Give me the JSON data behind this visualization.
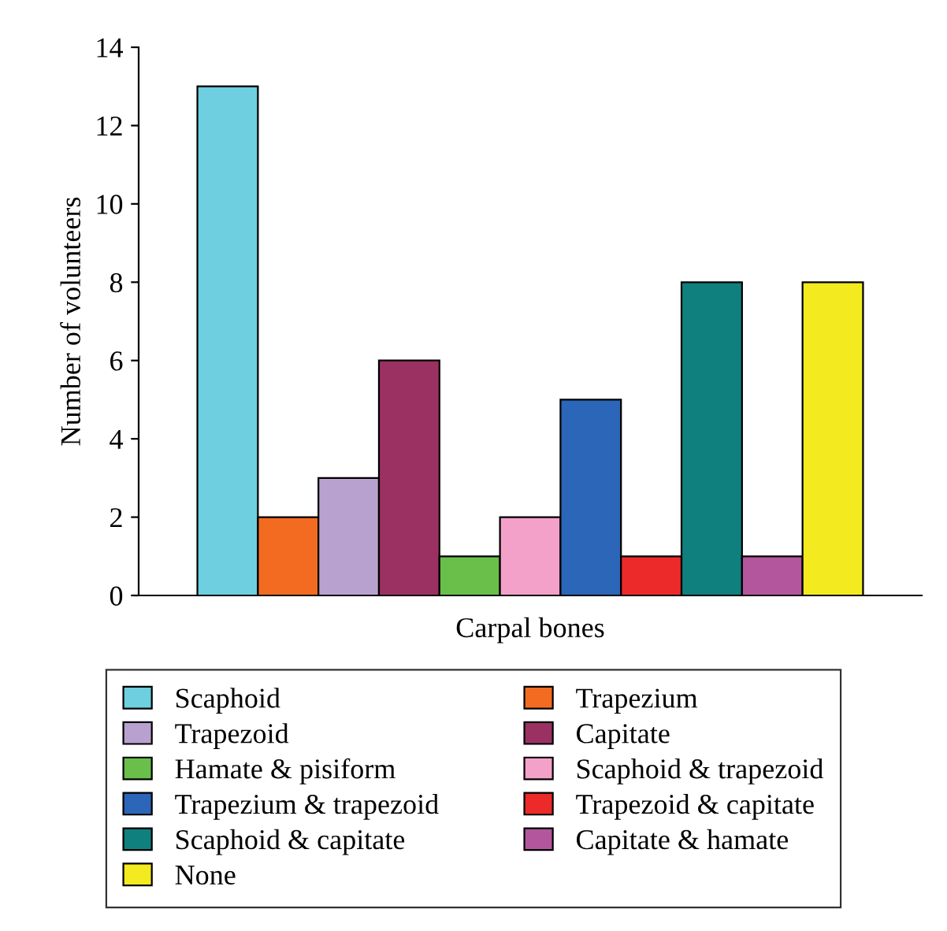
{
  "chart_data": {
    "type": "bar",
    "ylabel": "Number of volunteers",
    "categories": [
      "Carpal bones"
    ],
    "series": [
      {
        "name": "Scaphoid",
        "color": "#6dcfdf",
        "values": [
          13
        ]
      },
      {
        "name": "Trapezium",
        "color": "#f26b21",
        "values": [
          2
        ]
      },
      {
        "name": "Trapezoid",
        "color": "#b9a1cf",
        "values": [
          3
        ]
      },
      {
        "name": "Capitate",
        "color": "#9b3162",
        "values": [
          6
        ]
      },
      {
        "name": "Hamate & pisiform",
        "color": "#6abf4b",
        "values": [
          1
        ]
      },
      {
        "name": "Scaphoid & trapezoid",
        "color": "#f4a1c9",
        "values": [
          2
        ]
      },
      {
        "name": "Trapezium & trapezoid",
        "color": "#2b66b8",
        "values": [
          5
        ]
      },
      {
        "name": "Trapezoid & capitate",
        "color": "#ed2a2a",
        "values": [
          1
        ]
      },
      {
        "name": "Scaphoid & capitate",
        "color": "#10807e",
        "values": [
          8
        ]
      },
      {
        "name": "Capitate & hamate",
        "color": "#b4569e",
        "values": [
          1
        ]
      },
      {
        "name": "None",
        "color": "#f3ea1f",
        "values": [
          8
        ]
      }
    ],
    "ylim": [
      0,
      14
    ],
    "yticks": [
      0,
      2,
      4,
      6,
      8,
      10,
      12,
      14
    ],
    "grid": false,
    "legend": "bottom"
  }
}
